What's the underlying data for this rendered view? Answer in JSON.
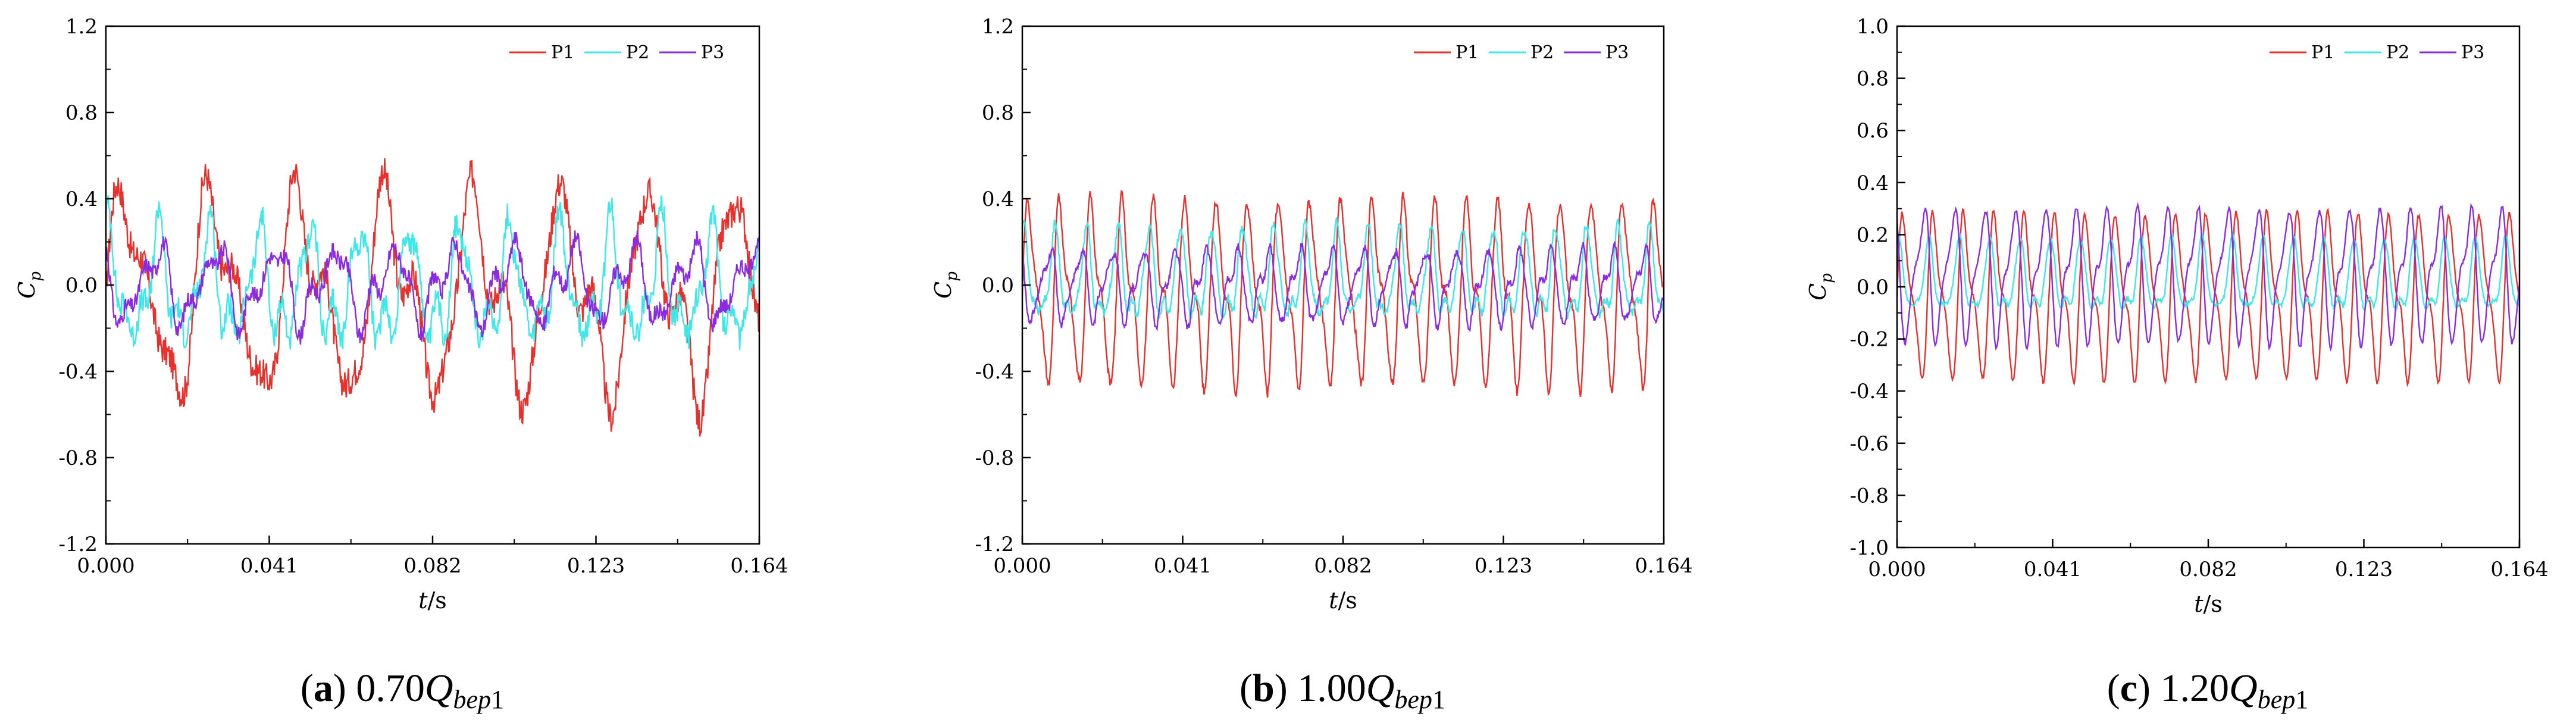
{
  "chart_data": [
    {
      "type": "line",
      "panel_id": "a",
      "caption": {
        "letter": "(a)",
        "value": "0.70",
        "q": "Q",
        "sub": "bep",
        "subnum": "1"
      },
      "xlabel_italic": "t",
      "xlabel_unit": "/s",
      "ylabel": "C",
      "ylabel_sub": "p",
      "xlim": [
        0,
        0.164
      ],
      "ylim": [
        -1.2,
        1.2
      ],
      "xticks": [
        "0.000",
        "0.041",
        "0.082",
        "0.123",
        "0.164"
      ],
      "yticks": [
        "-1.2",
        "-0.8",
        "-0.4",
        "0.0",
        "0.4",
        "0.8",
        "1.2"
      ],
      "legend": [
        "P1",
        "P2",
        "P3"
      ],
      "series": [
        {
          "name": "P1",
          "color": "#e8302c",
          "mean": -0.05,
          "amp": 0.55,
          "freq": 7.5,
          "noise": 0.18
        },
        {
          "name": "P2",
          "color": "#3ee8e8",
          "mean": -0.02,
          "amp": 0.3,
          "freq": 13.0,
          "noise": 0.15
        },
        {
          "name": "P3",
          "color": "#8a2be2",
          "mean": 0.0,
          "amp": 0.2,
          "freq": 11.0,
          "noise": 0.1
        }
      ]
    },
    {
      "type": "line",
      "panel_id": "b",
      "caption": {
        "letter": "(b)",
        "value": "1.00",
        "q": "Q",
        "sub": "bep",
        "subnum": "1"
      },
      "xlabel_italic": "t",
      "xlabel_unit": "/s",
      "ylabel": "C",
      "ylabel_sub": "p",
      "xlim": [
        0,
        0.164
      ],
      "ylim": [
        -1.2,
        1.2
      ],
      "xticks": [
        "0.000",
        "0.041",
        "0.082",
        "0.123",
        "0.164"
      ],
      "yticks": [
        "-1.2",
        "-0.8",
        "-0.4",
        "0.0",
        "0.4",
        "0.8",
        "1.2"
      ],
      "legend": [
        "P1",
        "P2",
        "P3"
      ],
      "series": [
        {
          "name": "P1",
          "color": "#e8302c",
          "mean": -0.04,
          "amp": 0.5,
          "freq": 20.5,
          "noise": 0.05
        },
        {
          "name": "P2",
          "color": "#3ee8e8",
          "mean": 0.02,
          "amp": 0.25,
          "freq": 20.5,
          "noise": 0.05
        },
        {
          "name": "P3",
          "color": "#8a2be2",
          "mean": 0.0,
          "amp": 0.2,
          "freq": 20.5,
          "noise": 0.04
        }
      ]
    },
    {
      "type": "line",
      "panel_id": "c",
      "caption": {
        "letter": "(c)",
        "value": "1.20",
        "q": "Q",
        "sub": "bep",
        "subnum": "1"
      },
      "xlabel_italic": "t",
      "xlabel_unit": "/s",
      "ylabel": "C",
      "ylabel_sub": "p",
      "xlim": [
        0,
        0.164
      ],
      "ylim": [
        -1.0,
        1.0
      ],
      "xticks": [
        "0.000",
        "0.041",
        "0.082",
        "0.123",
        "0.164"
      ],
      "yticks": [
        "-1.0",
        "-0.8",
        "-0.6",
        "-0.4",
        "-0.2",
        "0.0",
        "0.2",
        "0.4",
        "0.6",
        "0.8",
        "1.0"
      ],
      "legend": [
        "P1",
        "P2",
        "P3"
      ],
      "series": [
        {
          "name": "P1",
          "color": "#e8302c",
          "mean": -0.04,
          "amp": 0.37,
          "freq": 20.5,
          "noise": 0.02
        },
        {
          "name": "P2",
          "color": "#3ee8e8",
          "mean": 0.02,
          "amp": 0.17,
          "freq": 20.5,
          "noise": 0.02
        },
        {
          "name": "P3",
          "color": "#8a2be2",
          "mean": 0.05,
          "amp": 0.3,
          "freq": 20.5,
          "noise": 0.02
        }
      ]
    }
  ]
}
